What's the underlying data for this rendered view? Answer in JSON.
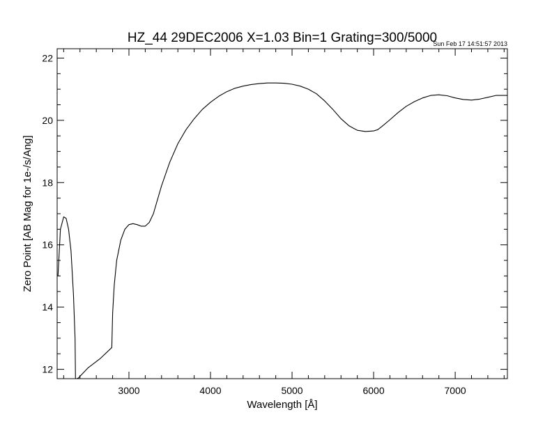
{
  "chart_data": {
    "type": "line",
    "title": "HZ_44 29DEC2006 X=1.03 Bin=1 Grating=300/5000",
    "timestamp": "Sun Feb 17 14:51:57 2013",
    "xlabel": "Wavelength [Å]",
    "ylabel": "Zero Point [AB Mag for 1e-/s/Ang]",
    "xlim": [
      2120,
      7640
    ],
    "ylim": [
      11.7,
      22.3
    ],
    "xticks": [
      3000,
      4000,
      5000,
      6000,
      7000
    ],
    "xtick_labels": [
      "3000",
      "4000",
      "5000",
      "6000",
      "7000"
    ],
    "yticks": [
      12,
      14,
      16,
      18,
      20,
      22
    ],
    "ytick_labels": [
      "12",
      "14",
      "16",
      "18",
      "20",
      "22"
    ],
    "grid": false,
    "legend": "none",
    "series": [
      {
        "x": [
          2130,
          2160,
          2200,
          2230,
          2260,
          2290,
          2320,
          2340,
          2345,
          2355,
          2360,
          2380,
          2500,
          2650,
          2790,
          2800,
          2820,
          2850,
          2900,
          2950,
          3000,
          3050,
          3100,
          3150,
          3200,
          3250,
          3300,
          3400,
          3500,
          3600,
          3700,
          3800,
          3900,
          4000,
          4100,
          4200,
          4300,
          4400,
          4500,
          4600,
          4700,
          4800,
          4900,
          5000,
          5100,
          5200,
          5300,
          5400,
          5500,
          5600,
          5700,
          5800,
          5900,
          6000,
          6050,
          6100,
          6200,
          6300,
          6400,
          6500,
          6600,
          6700,
          6800,
          6900,
          7000,
          7100,
          7200,
          7300,
          7400,
          7500,
          7600,
          7640
        ],
        "y": [
          15.0,
          16.5,
          16.9,
          16.85,
          16.5,
          15.8,
          14.4,
          13.0,
          11.7,
          11.7,
          11.7,
          11.72,
          12.05,
          12.35,
          12.7,
          13.8,
          14.7,
          15.5,
          16.15,
          16.5,
          16.65,
          16.68,
          16.65,
          16.6,
          16.6,
          16.72,
          17.0,
          17.9,
          18.65,
          19.25,
          19.7,
          20.05,
          20.35,
          20.58,
          20.77,
          20.92,
          21.03,
          21.1,
          21.15,
          21.18,
          21.2,
          21.2,
          21.19,
          21.16,
          21.1,
          21.0,
          20.85,
          20.62,
          20.35,
          20.05,
          19.82,
          19.68,
          19.64,
          19.66,
          19.7,
          19.8,
          20.02,
          20.25,
          20.45,
          20.6,
          20.72,
          20.8,
          20.82,
          20.79,
          20.72,
          20.67,
          20.65,
          20.68,
          20.74,
          20.8,
          20.8,
          20.8
        ]
      }
    ]
  }
}
